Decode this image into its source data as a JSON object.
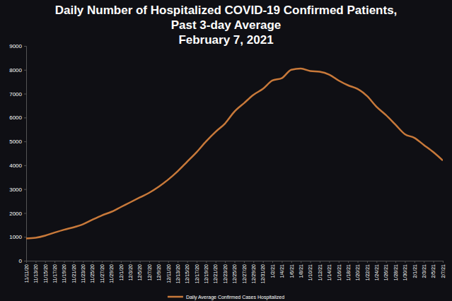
{
  "chart_data": {
    "type": "line",
    "title": [
      "Daily Number of Hospitalized COVID-19 Confirmed Patients,",
      "Past 3-day Average"
    ],
    "subtitle": "February 7, 2021",
    "categories": [
      "11/11/20",
      "11/13/20",
      "11/15/20",
      "11/17/20",
      "11/19/20",
      "11/21/20",
      "11/23/20",
      "11/25/20",
      "11/27/20",
      "11/29/20",
      "12/1/20",
      "12/3/20",
      "12/5/20",
      "12/7/20",
      "12/9/20",
      "12/11/20",
      "12/13/20",
      "12/15/20",
      "12/17/20",
      "12/19/20",
      "12/21/20",
      "12/23/20",
      "12/25/20",
      "12/27/20",
      "12/29/20",
      "12/31/20",
      "1/2/21",
      "1/4/21",
      "1/6/21",
      "1/8/21",
      "1/10/21",
      "1/12/21",
      "1/14/21",
      "1/16/21",
      "1/18/21",
      "1/20/21",
      "1/22/21",
      "1/24/21",
      "1/26/21",
      "1/28/21",
      "1/30/21",
      "2/1/21",
      "2/3/21",
      "2/5/21",
      "2/7/21"
    ],
    "series": [
      {
        "name": "Daily Average Confirmed Cases Hospitalized",
        "color": "#c8793a",
        "values": [
          930,
          960,
          1050,
          1180,
          1300,
          1400,
          1530,
          1720,
          1900,
          2050,
          2250,
          2450,
          2650,
          2850,
          3100,
          3400,
          3750,
          4150,
          4550,
          5000,
          5400,
          5750,
          6250,
          6600,
          6950,
          7200,
          7550,
          7650,
          8000,
          8050,
          7950,
          7920,
          7800,
          7550,
          7350,
          7200,
          6900,
          6450,
          6100,
          5700,
          5300,
          5150,
          4850,
          4550,
          4200
        ]
      }
    ],
    "ylim": [
      0,
      9000
    ],
    "yticks": [
      0,
      1000,
      2000,
      3000,
      4000,
      5000,
      6000,
      7000,
      8000,
      9000
    ],
    "grid": false,
    "legend": "bottom"
  }
}
